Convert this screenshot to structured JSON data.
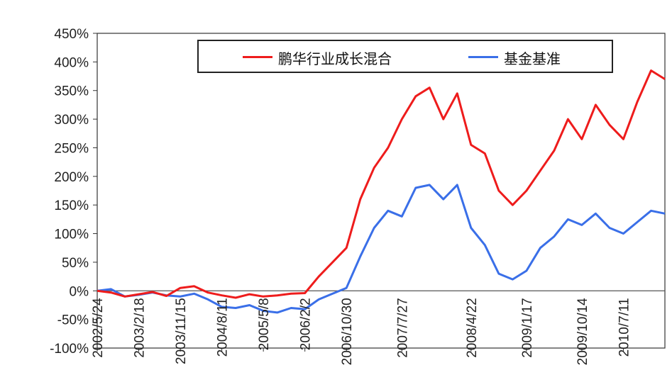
{
  "chart_data": {
    "type": "line",
    "title": "",
    "xlabel": "",
    "ylabel": "",
    "ylim": [
      -100,
      450
    ],
    "y_ticks": [
      "450%",
      "400%",
      "350%",
      "300%",
      "250%",
      "200%",
      "150%",
      "100%",
      "50%",
      "0%",
      "-50%",
      "-100%"
    ],
    "x_ticks": [
      "2002/5/24",
      "2003/2/18",
      "2003/11/15",
      "2004/8/11",
      "2005/5/8",
      "2006/2/2",
      "2006/10/30",
      "2007/7/27",
      "2008/4/22",
      "2009/1/17",
      "2009/10/14",
      "2010/7/11"
    ],
    "legend_position": "top-center",
    "grid": false,
    "colors": {
      "fund": "#ee1c1c",
      "benchmark": "#3a6fe8"
    },
    "x": [
      "2002/5/24",
      "2002/8/22",
      "2002/11/20",
      "2003/2/18",
      "2003/5/19",
      "2003/8/17",
      "2003/11/15",
      "2004/2/13",
      "2004/5/13",
      "2004/8/11",
      "2004/11/9",
      "2005/2/7",
      "2005/5/8",
      "2005/8/6",
      "2005/11/4",
      "2006/2/2",
      "2006/5/3",
      "2006/8/1",
      "2006/10/30",
      "2007/1/28",
      "2007/4/28",
      "2007/6/12",
      "2007/7/27",
      "2007/9/10",
      "2007/10/25",
      "2007/12/9",
      "2008/1/23",
      "2008/4/22",
      "2008/7/21",
      "2008/10/19",
      "2008/12/3",
      "2009/1/17",
      "2009/4/17",
      "2009/7/16",
      "2009/8/30",
      "2009/10/14",
      "2010/1/12",
      "2010/4/12",
      "2010/7/11",
      "2010/10/9",
      "2010/11/23",
      "2010/12/31"
    ],
    "series": [
      {
        "name": "鹏华行业成长混合",
        "values": [
          0,
          -3,
          -10,
          -6,
          -2,
          -9,
          5,
          8,
          -3,
          -8,
          -12,
          -6,
          -10,
          -8,
          -5,
          -4,
          25,
          50,
          75,
          160,
          215,
          250,
          300,
          340,
          355,
          300,
          345,
          255,
          240,
          175,
          150,
          175,
          210,
          245,
          300,
          265,
          325,
          290,
          265,
          330,
          385,
          370
        ]
      },
      {
        "name": "基金基准",
        "values": [
          0,
          3,
          -10,
          -7,
          -3,
          -8,
          -10,
          -5,
          -15,
          -28,
          -30,
          -25,
          -35,
          -38,
          -30,
          -32,
          -15,
          -5,
          5,
          60,
          110,
          140,
          130,
          180,
          185,
          160,
          185,
          110,
          80,
          30,
          20,
          35,
          75,
          95,
          125,
          115,
          135,
          110,
          100,
          120,
          140,
          135
        ]
      }
    ]
  }
}
